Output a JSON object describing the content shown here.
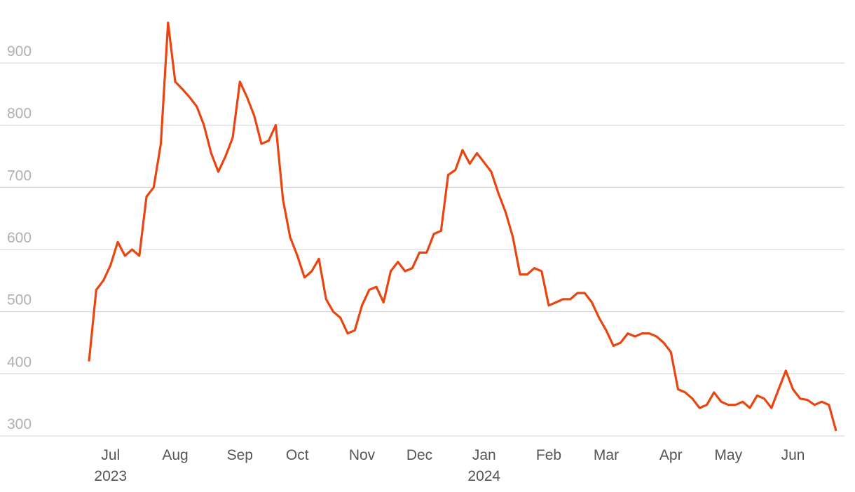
{
  "chart_data": {
    "type": "line",
    "categories": [
      "",
      "",
      "",
      "Jul 2023",
      "",
      "",
      "",
      "",
      "",
      "",
      "",
      "",
      "Aug",
      "",
      "",
      "",
      "",
      "",
      "",
      "",
      "",
      "Sep",
      "",
      "",
      "",
      "",
      "",
      "",
      "",
      "Oct",
      "",
      "",
      "",
      "",
      "",
      "",
      "",
      "",
      "Nov",
      "",
      "",
      "",
      "",
      "",
      "",
      "",
      "Dec",
      "",
      "",
      "",
      "",
      "",
      "",
      "",
      "",
      "Jan 2024",
      "",
      "",
      "",
      "",
      "",
      "",
      "",
      "",
      "Feb",
      "",
      "",
      "",
      "",
      "",
      "",
      "",
      "Mar",
      "",
      "",
      "",
      "",
      "",
      "",
      "",
      "",
      "Apr",
      "",
      "",
      "",
      "",
      "",
      "",
      "",
      "May",
      "",
      "",
      "",
      "",
      "",
      "",
      "",
      "",
      "Jun",
      "",
      "",
      "",
      "",
      "",
      ""
    ],
    "series": [
      {
        "color": "#ea4410",
        "values": [
          420,
          535,
          550,
          575,
          612,
          590,
          600,
          590,
          685,
          700,
          770,
          965,
          870,
          858,
          845,
          830,
          800,
          755,
          725,
          750,
          780,
          870,
          845,
          815,
          770,
          775,
          800,
          680,
          620,
          590,
          555,
          565,
          585,
          520,
          500,
          490,
          465,
          470,
          510,
          535,
          540,
          515,
          565,
          580,
          565,
          570,
          595,
          595,
          625,
          630,
          720,
          728,
          760,
          738,
          755,
          740,
          725,
          690,
          660,
          620,
          560,
          560,
          570,
          565,
          510,
          515,
          520,
          520,
          530,
          530,
          515,
          490,
          470,
          445,
          450,
          465,
          460,
          465,
          465,
          460,
          450,
          435,
          375,
          370,
          360,
          345,
          350,
          370,
          355,
          350,
          350,
          355,
          345,
          365,
          360,
          345,
          375,
          405,
          375,
          360,
          358,
          350,
          355,
          350,
          308
        ]
      }
    ],
    "ylim": [
      300,
      1000
    ],
    "yticks": [
      300,
      400,
      500,
      600,
      700,
      800,
      900
    ],
    "grid": true
  }
}
